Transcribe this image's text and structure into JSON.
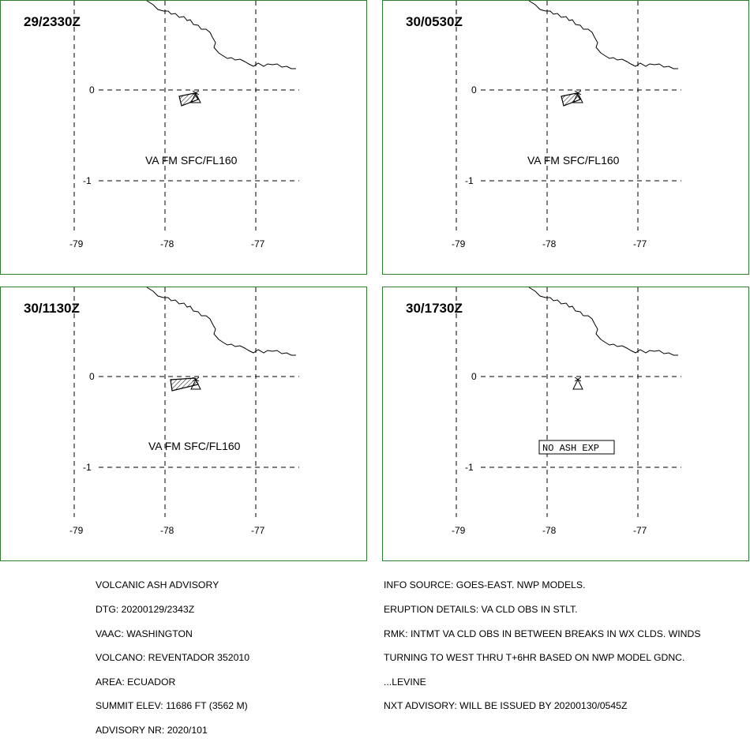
{
  "map": {
    "lon_ticks": [
      "-79",
      "-78",
      "-77"
    ],
    "lat_ticks": [
      "0",
      "-1"
    ],
    "line_color": "#000000",
    "border_color": "#2e7d2e"
  },
  "panels": [
    {
      "timestamp": "29/2330Z",
      "label": "VA FM SFC/FL160",
      "boxed": false,
      "ash": "small"
    },
    {
      "timestamp": "30/0530Z",
      "label": "VA FM SFC/FL160",
      "boxed": false,
      "ash": "small"
    },
    {
      "timestamp": "30/1130Z",
      "label": "VA FM SFC/FL160",
      "boxed": false,
      "ash": "large"
    },
    {
      "timestamp": "30/1730Z",
      "label": "NO ASH EXP",
      "boxed": true,
      "ash": "none"
    }
  ],
  "advisory_left": [
    "VOLCANIC ASH ADVISORY",
    "DTG: 20200129/2343Z",
    "VAAC: WASHINGTON",
    "VOLCANO: REVENTADOR 352010",
    "AREA: ECUADOR",
    "SUMMIT ELEV: 11686 FT (3562 M)",
    "ADVISORY NR: 2020/101"
  ],
  "advisory_right": [
    "INFO SOURCE: GOES-EAST. NWP MODELS.",
    "ERUPTION DETAILS: VA CLD OBS IN STLT.",
    "RMK: INTMT VA CLD OBS IN BETWEEN BREAKS IN WX CLDS. WINDS",
    "TURNING TO WEST THRU T+6HR BASED ON NWP MODEL GDNC.",
    "...LEVINE",
    "NXT ADVISORY: WILL BE ISSUED BY 20200130/0545Z"
  ]
}
